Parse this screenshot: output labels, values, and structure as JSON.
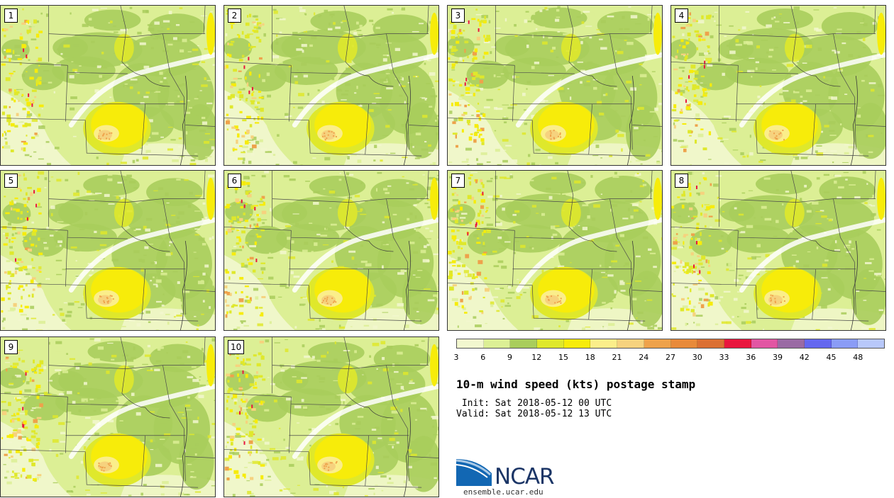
{
  "members": [
    "1",
    "2",
    "3",
    "4",
    "5",
    "6",
    "7",
    "8",
    "9",
    "10"
  ],
  "colorbar": {
    "ticks": [
      "3",
      "6",
      "9",
      "12",
      "15",
      "18",
      "21",
      "24",
      "27",
      "30",
      "33",
      "36",
      "39",
      "42",
      "45",
      "48"
    ],
    "colors": [
      "#f2f7cf",
      "#dcef95",
      "#a9cd5c",
      "#dfe82b",
      "#f7ec0a",
      "#fbee8a",
      "#f6d27e",
      "#eea24b",
      "#e88a3a",
      "#db7034",
      "#e9163e",
      "#e256a3",
      "#9a6aa4",
      "#6467ef",
      "#8a9cf6",
      "#b8c8fa"
    ]
  },
  "title": "10-m wind speed (kts) postage stamp",
  "init_line": " Init: Sat 2018-05-12 00 UTC",
  "valid_line": "Valid: Sat 2018-05-12 13 UTC",
  "logo": {
    "name": "NCAR",
    "url": "ensemble.ucar.edu"
  }
}
